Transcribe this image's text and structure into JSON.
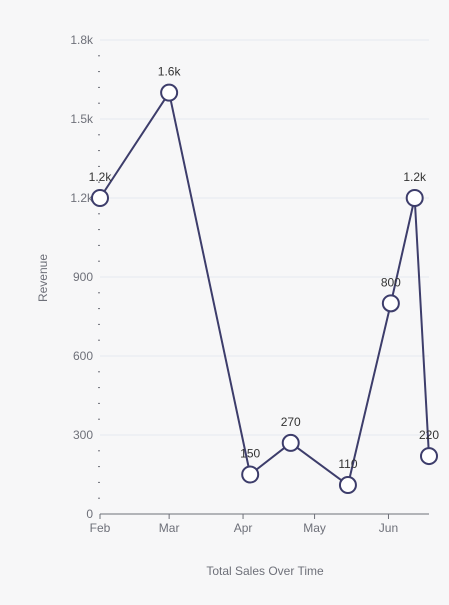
{
  "chart_data": {
    "type": "line",
    "xlabel": "Total Sales Over Time",
    "ylabel": "Revenue",
    "x_ticks": [
      "Feb",
      "Mar",
      "Apr",
      "May",
      "Jun"
    ],
    "y_ticks": [
      "0",
      "300",
      "600",
      "900",
      "1.2k",
      "1.5k",
      "1.8k"
    ],
    "ylim": [
      0,
      1800
    ],
    "grid": true,
    "series": [
      {
        "points": [
          {
            "date": "2024-02-01",
            "value": 1200,
            "label": "1.2k"
          },
          {
            "date": "2024-03-01",
            "value": 1600,
            "label": "1.6k"
          },
          {
            "date": "2024-04-04",
            "value": 150,
            "label": "150"
          },
          {
            "date": "2024-04-21",
            "value": 270,
            "label": "270"
          },
          {
            "date": "2024-05-15",
            "value": 110,
            "label": "110"
          },
          {
            "date": "2024-06-02",
            "value": 800,
            "label": "800"
          },
          {
            "date": "2024-06-12",
            "value": 1200,
            "label": "1.2k"
          },
          {
            "date": "2024-06-18",
            "value": 220,
            "label": "220"
          }
        ]
      }
    ]
  },
  "colors": {
    "line": "#3d3d6b",
    "marker_fill": "#ffffff",
    "grid": "#e6e8f0",
    "axis": "#6e7079"
  }
}
